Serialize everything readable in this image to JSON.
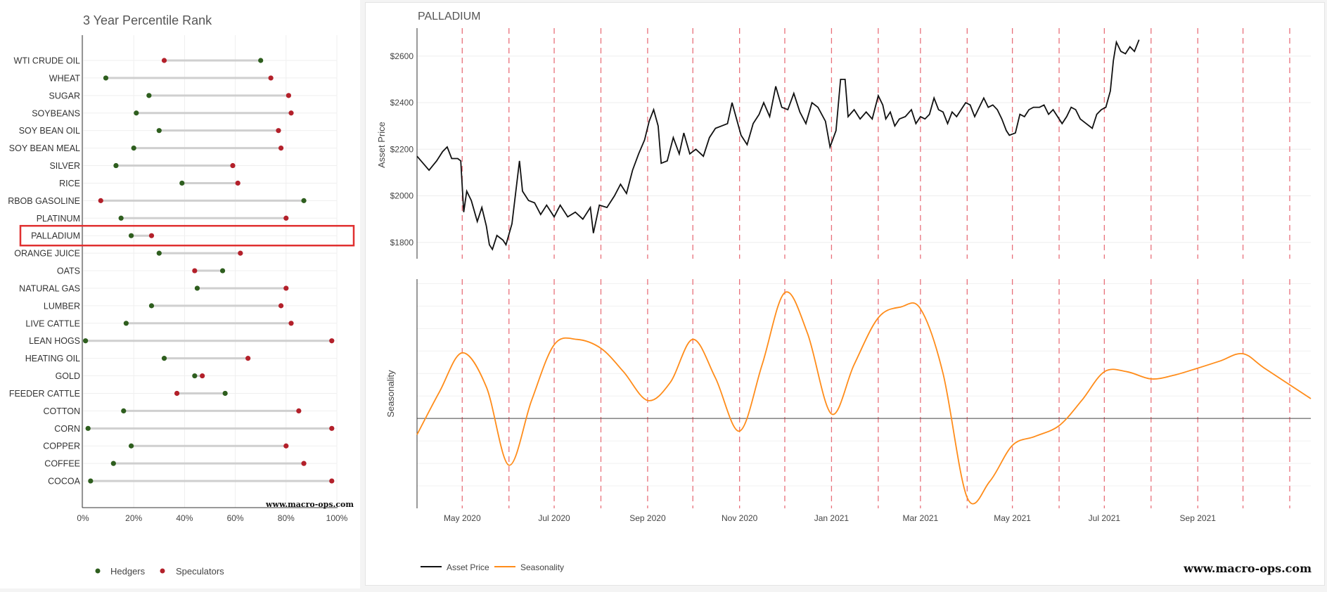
{
  "left_chart": {
    "title": "3 Year Percentile Rank",
    "watermark": "www.macro-ops.com",
    "highlighted": "PALLADIUM",
    "legend": {
      "hedgers": "Hedgers",
      "speculators": "Speculators"
    },
    "colors": {
      "hedgers": "#2e5e1e",
      "speculators": "#b3202a",
      "connector": "#cfcfcf",
      "highlight": "#e03030"
    }
  },
  "right_chart": {
    "title": "PALLADIUM",
    "watermark": "www.macro-ops.com",
    "price_axis_label": "Asset Price",
    "season_axis_label": "Seasonality",
    "legend": {
      "price": "Asset Price",
      "season": "Seasonality"
    },
    "colors": {
      "price": "#111111",
      "season": "#ff8c1a",
      "vlines": "#e8707a",
      "zero": "#444444"
    }
  },
  "chart_data": [
    {
      "type": "dumbbell",
      "title": "3 Year Percentile Rank",
      "xlim": [
        0,
        100
      ],
      "xticks": [
        "0%",
        "20%",
        "40%",
        "60%",
        "80%",
        "100%"
      ],
      "legend": "bottom",
      "categories": [
        "WTI CRUDE OIL",
        "WHEAT",
        "SUGAR",
        "SOYBEANS",
        "SOY BEAN OIL",
        "SOY BEAN MEAL",
        "SILVER",
        "RICE",
        "RBOB GASOLINE",
        "PLATINUM",
        "PALLADIUM",
        "ORANGE JUICE",
        "OATS",
        "NATURAL GAS",
        "LUMBER",
        "LIVE CATTLE",
        "LEAN HOGS",
        "HEATING OIL",
        "GOLD",
        "FEEDER CATTLE",
        "COTTON",
        "CORN",
        "COPPER",
        "COFFEE",
        "COCOA"
      ],
      "series": [
        {
          "name": "Hedgers",
          "values": [
            70,
            9,
            26,
            21,
            30,
            20,
            13,
            39,
            87,
            15,
            19,
            30,
            55,
            45,
            27,
            17,
            1,
            32,
            44,
            56,
            16,
            2,
            19,
            12,
            3
          ]
        },
        {
          "name": "Speculators",
          "values": [
            32,
            74,
            81,
            82,
            77,
            78,
            59,
            61,
            7,
            80,
            27,
            62,
            44,
            80,
            78,
            82,
            98,
            65,
            47,
            37,
            85,
            98,
            80,
            87,
            98
          ]
        }
      ]
    },
    {
      "type": "line",
      "title": "PALLADIUM",
      "ylabel": "Asset Price",
      "ylim": [
        1730,
        2720
      ],
      "yticks": [
        "$1800",
        "$2000",
        "$2200",
        "$2400",
        "$2600"
      ],
      "x_start": "2020-04-01",
      "x_end": "2021-11-15",
      "xticks": [
        "May 2020",
        "Jul 2020",
        "Sep 2020",
        "Nov 2020",
        "Jan 2021",
        "Mar 2021",
        "May 2021",
        "Jul 2021",
        "Sep 2021"
      ],
      "vlines": [
        "2020-05-01",
        "2020-06-01",
        "2020-07-01",
        "2020-08-01",
        "2020-09-01",
        "2020-10-01",
        "2020-11-01",
        "2020-12-01",
        "2021-01-01",
        "2021-02-01",
        "2021-03-01",
        "2021-04-01",
        "2021-05-01",
        "2021-06-01",
        "2021-07-01",
        "2021-08-01",
        "2021-09-01",
        "2021-10-01",
        "2021-11-01"
      ],
      "series": [
        {
          "name": "Asset Price",
          "points": [
            [
              "2020-04-01",
              2170
            ],
            [
              "2020-04-05",
              2140
            ],
            [
              "2020-04-09",
              2110
            ],
            [
              "2020-04-14",
              2150
            ],
            [
              "2020-04-18",
              2190
            ],
            [
              "2020-04-21",
              2210
            ],
            [
              "2020-04-24",
              2160
            ],
            [
              "2020-04-28",
              2160
            ],
            [
              "2020-04-30",
              2150
            ],
            [
              "2020-05-02",
              1930
            ],
            [
              "2020-05-04",
              2020
            ],
            [
              "2020-05-07",
              1980
            ],
            [
              "2020-05-11",
              1890
            ],
            [
              "2020-05-14",
              1950
            ],
            [
              "2020-05-17",
              1870
            ],
            [
              "2020-05-19",
              1790
            ],
            [
              "2020-05-21",
              1770
            ],
            [
              "2020-05-24",
              1830
            ],
            [
              "2020-05-28",
              1810
            ],
            [
              "2020-05-30",
              1790
            ],
            [
              "2020-06-03",
              1880
            ],
            [
              "2020-06-08",
              2150
            ],
            [
              "2020-06-10",
              2020
            ],
            [
              "2020-06-14",
              1980
            ],
            [
              "2020-06-18",
              1970
            ],
            [
              "2020-06-22",
              1920
            ],
            [
              "2020-06-26",
              1960
            ],
            [
              "2020-07-01",
              1910
            ],
            [
              "2020-07-05",
              1960
            ],
            [
              "2020-07-10",
              1910
            ],
            [
              "2020-07-15",
              1930
            ],
            [
              "2020-07-20",
              1900
            ],
            [
              "2020-07-25",
              1950
            ],
            [
              "2020-07-27",
              1840
            ],
            [
              "2020-07-31",
              1960
            ],
            [
              "2020-08-05",
              1950
            ],
            [
              "2020-08-10",
              2000
            ],
            [
              "2020-08-14",
              2050
            ],
            [
              "2020-08-18",
              2010
            ],
            [
              "2020-08-22",
              2110
            ],
            [
              "2020-08-26",
              2180
            ],
            [
              "2020-08-30",
              2240
            ],
            [
              "2020-09-02",
              2320
            ],
            [
              "2020-09-05",
              2370
            ],
            [
              "2020-09-08",
              2300
            ],
            [
              "2020-09-10",
              2140
            ],
            [
              "2020-09-14",
              2150
            ],
            [
              "2020-09-18",
              2250
            ],
            [
              "2020-09-22",
              2180
            ],
            [
              "2020-09-25",
              2270
            ],
            [
              "2020-09-29",
              2180
            ],
            [
              "2020-10-03",
              2200
            ],
            [
              "2020-10-08",
              2170
            ],
            [
              "2020-10-12",
              2250
            ],
            [
              "2020-10-16",
              2290
            ],
            [
              "2020-10-20",
              2300
            ],
            [
              "2020-10-24",
              2310
            ],
            [
              "2020-10-27",
              2400
            ],
            [
              "2020-10-30",
              2330
            ],
            [
              "2020-11-02",
              2260
            ],
            [
              "2020-11-06",
              2220
            ],
            [
              "2020-11-10",
              2310
            ],
            [
              "2020-11-14",
              2350
            ],
            [
              "2020-11-17",
              2400
            ],
            [
              "2020-11-21",
              2340
            ],
            [
              "2020-11-25",
              2470
            ],
            [
              "2020-11-29",
              2380
            ],
            [
              "2020-12-03",
              2370
            ],
            [
              "2020-12-07",
              2440
            ],
            [
              "2020-12-11",
              2360
            ],
            [
              "2020-12-15",
              2310
            ],
            [
              "2020-12-19",
              2400
            ],
            [
              "2020-12-23",
              2380
            ],
            [
              "2020-12-28",
              2320
            ],
            [
              "2020-12-31",
              2210
            ],
            [
              "2021-01-04",
              2280
            ],
            [
              "2021-01-07",
              2500
            ],
            [
              "2021-01-10",
              2500
            ],
            [
              "2021-01-12",
              2340
            ],
            [
              "2021-01-16",
              2370
            ],
            [
              "2021-01-20",
              2330
            ],
            [
              "2021-01-24",
              2360
            ],
            [
              "2021-01-28",
              2330
            ],
            [
              "2021-02-01",
              2430
            ],
            [
              "2021-02-04",
              2390
            ],
            [
              "2021-02-06",
              2330
            ],
            [
              "2021-02-09",
              2360
            ],
            [
              "2021-02-12",
              2300
            ],
            [
              "2021-02-15",
              2330
            ],
            [
              "2021-02-19",
              2340
            ],
            [
              "2021-02-23",
              2370
            ],
            [
              "2021-02-26",
              2310
            ],
            [
              "2021-03-01",
              2340
            ],
            [
              "2021-03-04",
              2330
            ],
            [
              "2021-03-07",
              2350
            ],
            [
              "2021-03-10",
              2420
            ],
            [
              "2021-03-13",
              2370
            ],
            [
              "2021-03-16",
              2360
            ],
            [
              "2021-03-19",
              2310
            ],
            [
              "2021-03-22",
              2360
            ],
            [
              "2021-03-25",
              2340
            ],
            [
              "2021-03-28",
              2370
            ],
            [
              "2021-03-31",
              2400
            ],
            [
              "2021-04-03",
              2390
            ],
            [
              "2021-04-06",
              2340
            ],
            [
              "2021-04-09",
              2380
            ],
            [
              "2021-04-12",
              2420
            ],
            [
              "2021-04-15",
              2380
            ],
            [
              "2021-04-18",
              2390
            ],
            [
              "2021-04-21",
              2370
            ],
            [
              "2021-04-24",
              2330
            ],
            [
              "2021-04-27",
              2280
            ],
            [
              "2021-04-29",
              2260
            ],
            [
              "2021-05-03",
              2270
            ],
            [
              "2021-05-06",
              2350
            ],
            [
              "2021-05-09",
              2340
            ],
            [
              "2021-05-12",
              2370
            ],
            [
              "2021-05-15",
              2380
            ],
            [
              "2021-05-19",
              2380
            ],
            [
              "2021-05-22",
              2390
            ],
            [
              "2021-05-25",
              2350
            ],
            [
              "2021-05-28",
              2370
            ],
            [
              "2021-05-31",
              2340
            ],
            [
              "2021-06-03",
              2310
            ],
            [
              "2021-06-06",
              2340
            ],
            [
              "2021-06-09",
              2380
            ],
            [
              "2021-06-12",
              2370
            ],
            [
              "2021-06-15",
              2330
            ],
            [
              "2021-06-19",
              2310
            ],
            [
              "2021-06-23",
              2290
            ],
            [
              "2021-06-26",
              2350
            ],
            [
              "2021-06-29",
              2370
            ],
            [
              "2021-07-02",
              2380
            ],
            [
              "2021-07-05",
              2450
            ],
            [
              "2021-07-07",
              2580
            ],
            [
              "2021-07-09",
              2660
            ],
            [
              "2021-07-12",
              2620
            ],
            [
              "2021-07-15",
              2610
            ],
            [
              "2021-07-18",
              2640
            ],
            [
              "2021-07-21",
              2620
            ],
            [
              "2021-07-24",
              2670
            ]
          ]
        }
      ]
    },
    {
      "type": "line",
      "title": "",
      "ylabel": "Seasonality",
      "ylim": [
        -1.0,
        1.55
      ],
      "y_zero_line": true,
      "x_start": "2020-04-01",
      "x_end": "2021-11-15",
      "xticks": [
        "May 2020",
        "Jul 2020",
        "Sep 2020",
        "Nov 2020",
        "Jan 2021",
        "Mar 2021",
        "May 2021",
        "Jul 2021",
        "Sep 2021"
      ],
      "series": [
        {
          "name": "Seasonality",
          "points": [
            [
              "2020-04-01",
              -0.18
            ],
            [
              "2020-04-16",
              0.3
            ],
            [
              "2020-05-01",
              0.73
            ],
            [
              "2020-05-17",
              0.35
            ],
            [
              "2020-06-01",
              -0.52
            ],
            [
              "2020-06-16",
              0.2
            ],
            [
              "2020-07-01",
              0.82
            ],
            [
              "2020-07-16",
              0.88
            ],
            [
              "2020-08-01",
              0.78
            ],
            [
              "2020-08-16",
              0.52
            ],
            [
              "2020-09-01",
              0.2
            ],
            [
              "2020-09-16",
              0.4
            ],
            [
              "2020-10-01",
              0.88
            ],
            [
              "2020-10-16",
              0.45
            ],
            [
              "2020-11-01",
              -0.14
            ],
            [
              "2020-11-16",
              0.6
            ],
            [
              "2020-12-01",
              1.4
            ],
            [
              "2020-12-16",
              0.95
            ],
            [
              "2021-01-01",
              0.05
            ],
            [
              "2021-01-16",
              0.6
            ],
            [
              "2021-02-01",
              1.12
            ],
            [
              "2021-02-16",
              1.24
            ],
            [
              "2021-03-01",
              1.22
            ],
            [
              "2021-03-16",
              0.5
            ],
            [
              "2021-04-01",
              -0.88
            ],
            [
              "2021-04-16",
              -0.7
            ],
            [
              "2021-05-01",
              -0.3
            ],
            [
              "2021-05-16",
              -0.2
            ],
            [
              "2021-06-01",
              -0.08
            ],
            [
              "2021-06-16",
              0.2
            ],
            [
              "2021-07-01",
              0.52
            ],
            [
              "2021-07-16",
              0.52
            ],
            [
              "2021-08-01",
              0.44
            ],
            [
              "2021-08-16",
              0.48
            ],
            [
              "2021-09-01",
              0.56
            ],
            [
              "2021-09-16",
              0.64
            ],
            [
              "2021-10-01",
              0.72
            ],
            [
              "2021-10-16",
              0.55
            ],
            [
              "2021-11-15",
              0.22
            ]
          ]
        }
      ]
    }
  ]
}
